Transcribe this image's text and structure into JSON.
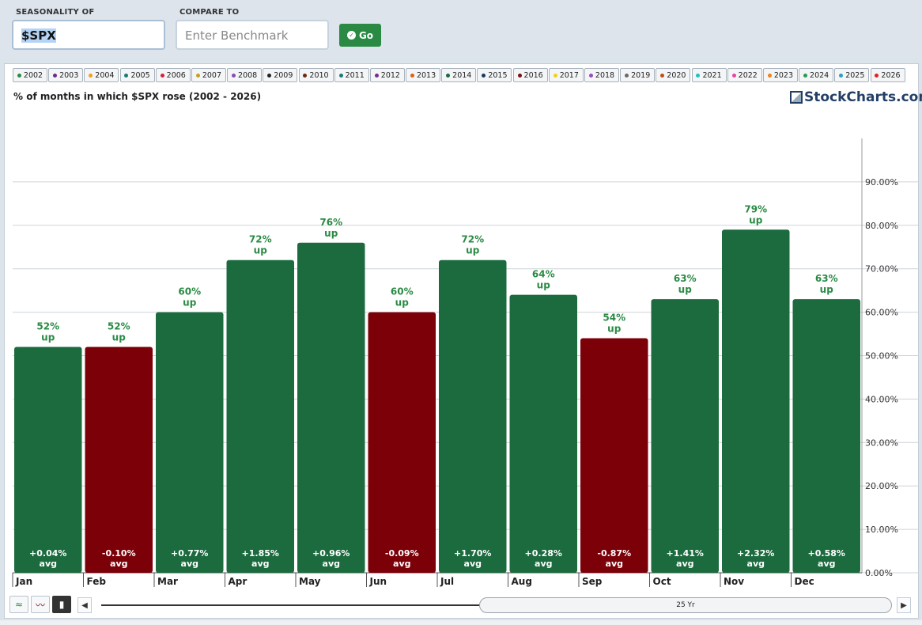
{
  "header": {
    "seasonality_label": "SEASONALITY OF",
    "compare_label": "COMPARE TO",
    "symbol_value": "$SPX",
    "benchmark_placeholder": "Enter Benchmark",
    "go_label": "Go"
  },
  "years": [
    {
      "label": "2002",
      "color": "#2a8a44"
    },
    {
      "label": "2003",
      "color": "#6a2b8e"
    },
    {
      "label": "2004",
      "color": "#f0a020"
    },
    {
      "label": "2005",
      "color": "#1a7a74"
    },
    {
      "label": "2006",
      "color": "#d4203a"
    },
    {
      "label": "2007",
      "color": "#c8a020"
    },
    {
      "label": "2008",
      "color": "#8a4ab0"
    },
    {
      "label": "2009",
      "color": "#222222"
    },
    {
      "label": "2010",
      "color": "#6b2a10"
    },
    {
      "label": "2011",
      "color": "#1a7a74"
    },
    {
      "label": "2012",
      "color": "#7a2a8e"
    },
    {
      "label": "2013",
      "color": "#e06010"
    },
    {
      "label": "2014",
      "color": "#1a6a40"
    },
    {
      "label": "2015",
      "color": "#1a3a5a"
    },
    {
      "label": "2016",
      "color": "#7a1010"
    },
    {
      "label": "2017",
      "color": "#f0d020"
    },
    {
      "label": "2018",
      "color": "#9a4ac0"
    },
    {
      "label": "2019",
      "color": "#6a6a6a"
    },
    {
      "label": "2020",
      "color": "#c05010"
    },
    {
      "label": "2021",
      "color": "#20c0c0"
    },
    {
      "label": "2022",
      "color": "#f040a0"
    },
    {
      "label": "2023",
      "color": "#f08020"
    },
    {
      "label": "2024",
      "color": "#2a9a50"
    },
    {
      "label": "2025",
      "color": "#2aa0c0"
    },
    {
      "label": "2026",
      "color": "#e02020"
    }
  ],
  "chart_title": "% of months in which $SPX rose (2002 - 2026)",
  "logo_text": "StockCharts.com",
  "slider_label": "25 Yr",
  "colors": {
    "up": "#1c6b3f",
    "down": "#7b0008",
    "label_green": "#2a8a44"
  },
  "chart_data": {
    "type": "bar",
    "title": "% of months in which $SPX rose (2002 - 2026)",
    "categories": [
      "Jan",
      "Feb",
      "Mar",
      "Apr",
      "May",
      "Jun",
      "Jul",
      "Aug",
      "Sep",
      "Oct",
      "Nov",
      "Dec"
    ],
    "values": [
      52,
      52,
      60,
      72,
      76,
      60,
      72,
      64,
      54,
      63,
      79,
      63
    ],
    "pct_labels": [
      "52%",
      "52%",
      "60%",
      "72%",
      "76%",
      "60%",
      "72%",
      "64%",
      "54%",
      "63%",
      "79%",
      "63%"
    ],
    "up_label": "up",
    "avg_returns": [
      "+0.04%",
      "-0.10%",
      "+0.77%",
      "+1.85%",
      "+0.96%",
      "-0.09%",
      "+1.70%",
      "+0.28%",
      "-0.87%",
      "+1.41%",
      "+2.32%",
      "+0.58%"
    ],
    "avg_label": "avg",
    "avg_direction": [
      "up",
      "down",
      "up",
      "up",
      "up",
      "down",
      "up",
      "up",
      "down",
      "up",
      "up",
      "up"
    ],
    "yticks": [
      "0.00%",
      "10.00%",
      "20.00%",
      "30.00%",
      "40.00%",
      "50.00%",
      "60.00%",
      "70.00%",
      "80.00%",
      "90.00%"
    ],
    "ylim": [
      0,
      100
    ],
    "grid": true,
    "y_axis_side": "right"
  }
}
